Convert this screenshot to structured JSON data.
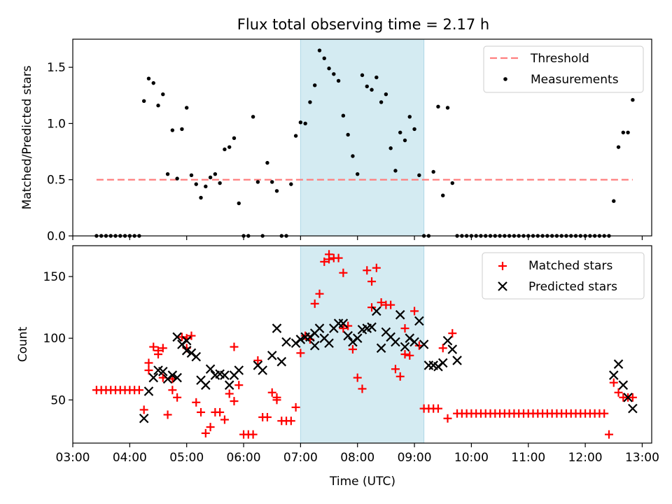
{
  "chart_data": [
    {
      "type": "scatter",
      "title": "Flux total observing time = 2.17 h",
      "xlabel": "",
      "ylabel": "Matched/Predicted stars",
      "xlim": [
        "03:00",
        "13:10"
      ],
      "ylim": [
        0,
        1.75
      ],
      "yticks": [
        "0.0",
        "0.5",
        "1.0",
        "1.5"
      ],
      "legend_position": "top-right",
      "highlight_span": {
        "from": "07:00",
        "to": "09:10"
      },
      "threshold": {
        "name": "Threshold",
        "value": 0.5,
        "from": "03:25",
        "to": "12:50",
        "color": "#ff7f7f"
      },
      "series": [
        {
          "name": "Measurements",
          "marker": "dot",
          "color": "#000000",
          "x": [
            "03:25",
            "03:30",
            "03:35",
            "03:40",
            "03:45",
            "03:50",
            "03:55",
            "04:00",
            "04:05",
            "04:10",
            "04:15",
            "04:20",
            "04:25",
            "04:30",
            "04:35",
            "04:40",
            "04:45",
            "04:50",
            "04:55",
            "05:00",
            "05:05",
            "05:10",
            "05:15",
            "05:20",
            "05:25",
            "05:30",
            "05:35",
            "05:40",
            "05:45",
            "05:50",
            "05:55",
            "06:00",
            "06:05",
            "06:10",
            "06:15",
            "06:20",
            "06:25",
            "06:30",
            "06:35",
            "06:40",
            "06:45",
            "06:50",
            "06:55",
            "07:00",
            "07:05",
            "07:10",
            "07:15",
            "07:20",
            "07:25",
            "07:30",
            "07:35",
            "07:40",
            "07:45",
            "07:50",
            "07:55",
            "08:00",
            "08:05",
            "08:10",
            "08:15",
            "08:20",
            "08:25",
            "08:30",
            "08:35",
            "08:40",
            "08:45",
            "08:50",
            "08:55",
            "09:00",
            "09:05",
            "09:10",
            "09:15",
            "09:20",
            "09:25",
            "09:30",
            "09:35",
            "09:40",
            "09:45",
            "09:50",
            "09:55",
            "10:00",
            "10:05",
            "10:10",
            "10:15",
            "10:20",
            "10:25",
            "10:30",
            "10:35",
            "10:40",
            "10:45",
            "10:50",
            "10:55",
            "11:00",
            "11:05",
            "11:10",
            "11:15",
            "11:20",
            "11:25",
            "11:30",
            "11:35",
            "11:40",
            "11:45",
            "11:50",
            "11:55",
            "12:00",
            "12:05",
            "12:10",
            "12:15",
            "12:20",
            "12:25",
            "12:30",
            "12:35",
            "12:40",
            "12:45",
            "12:50"
          ],
          "y": [
            0,
            0,
            0,
            0,
            0,
            0,
            0,
            0,
            0,
            0,
            1.2,
            1.4,
            1.36,
            1.16,
            1.26,
            0.55,
            0.94,
            0.51,
            0.95,
            1.14,
            0.54,
            0.46,
            0.34,
            0.44,
            0.52,
            0.55,
            0.47,
            0.77,
            0.79,
            0.87,
            0.29,
            0,
            0,
            1.06,
            0.48,
            0,
            0.65,
            0.48,
            0.4,
            0,
            0,
            0.46,
            0.89,
            1.01,
            1.0,
            1.19,
            1.34,
            1.65,
            1.58,
            1.49,
            1.44,
            1.38,
            1.07,
            0.9,
            0.71,
            0.55,
            1.43,
            1.33,
            1.3,
            1.41,
            1.19,
            1.26,
            0.78,
            0.58,
            0.92,
            0.85,
            1.06,
            0.95,
            0.54,
            0,
            0,
            0.57,
            1.15,
            0.36,
            1.14,
            0.47,
            0,
            0,
            0,
            0,
            0,
            0,
            0,
            0,
            0,
            0,
            0,
            0,
            0,
            0,
            0,
            0,
            0,
            0,
            0,
            0,
            0,
            0,
            0,
            0,
            0,
            0,
            0,
            0,
            0,
            0,
            0,
            0,
            0,
            0.31,
            0.79,
            0.92,
            0.92,
            1.21
          ]
        }
      ]
    },
    {
      "type": "scatter",
      "title": "",
      "xlabel": "Time (UTC)",
      "ylabel": "Count",
      "xlim": [
        "03:00",
        "13:10"
      ],
      "ylim": [
        15,
        175
      ],
      "xticks": [
        "03:00",
        "04:00",
        "05:00",
        "06:00",
        "07:00",
        "08:00",
        "09:00",
        "10:00",
        "11:00",
        "12:00",
        "13:00"
      ],
      "yticks": [
        "50",
        "100",
        "150"
      ],
      "legend_position": "top-right",
      "highlight_span": {
        "from": "07:00",
        "to": "09:10"
      },
      "series": [
        {
          "name": "Matched stars",
          "marker": "plus",
          "color": "#ff0000",
          "x": [
            "03:25",
            "03:30",
            "03:35",
            "03:40",
            "03:45",
            "03:50",
            "03:55",
            "04:00",
            "04:05",
            "04:10",
            "04:15",
            "04:20",
            "04:25",
            "04:30",
            "04:35",
            "04:40",
            "04:45",
            "04:50",
            "04:55",
            "05:00",
            "05:05",
            "05:10",
            "05:15",
            "05:20",
            "05:25",
            "05:30",
            "05:35",
            "05:40",
            "05:45",
            "05:50",
            "05:55",
            "06:00",
            "06:05",
            "06:10",
            "06:15",
            "06:20",
            "06:25",
            "06:30",
            "06:35",
            "06:40",
            "06:45",
            "06:50",
            "06:55",
            "07:00",
            "07:05",
            "07:10",
            "07:15",
            "07:20",
            "07:25",
            "07:30",
            "07:35",
            "07:40",
            "07:45",
            "07:50",
            "07:55",
            "08:00",
            "08:05",
            "08:10",
            "08:15",
            "08:20",
            "08:25",
            "08:30",
            "08:35",
            "08:40",
            "08:45",
            "08:50",
            "08:55",
            "09:00",
            "09:05",
            "09:10",
            "09:15",
            "09:20",
            "09:25",
            "09:30",
            "09:35",
            "09:40",
            "09:45",
            "09:50",
            "09:55",
            "10:00",
            "10:05",
            "10:10",
            "10:15",
            "10:20",
            "10:25",
            "10:30",
            "10:35",
            "10:40",
            "10:45",
            "10:50",
            "10:55",
            "11:00",
            "11:05",
            "11:10",
            "11:15",
            "11:20",
            "11:25",
            "11:30",
            "11:35",
            "11:40",
            "11:45",
            "11:50",
            "11:55",
            "12:00",
            "12:05",
            "12:10",
            "12:15",
            "12:20",
            "12:25",
            "12:30",
            "12:35",
            "12:40",
            "12:45",
            "12:50",
            "04:20",
            "04:30",
            "04:35",
            "04:45",
            "05:00",
            "05:50",
            "06:35",
            "07:30",
            "07:45",
            "08:15",
            "08:50"
          ],
          "y": [
            58,
            58,
            58,
            58,
            58,
            58,
            58,
            58,
            58,
            58,
            42,
            80,
            93,
            87,
            92,
            38,
            67,
            52,
            101,
            92,
            102,
            48,
            40,
            23,
            28,
            40,
            40,
            34,
            55,
            49,
            62,
            22,
            22,
            22,
            82,
            36,
            36,
            56,
            52,
            33,
            33,
            33,
            44,
            88,
            102,
            99,
            128,
            136,
            162,
            168,
            165,
            165,
            153,
            110,
            91,
            68,
            59,
            155,
            146,
            157,
            129,
            127,
            127,
            75,
            69,
            87,
            86,
            122,
            94,
            43,
            43,
            43,
            43,
            92,
            35,
            104,
            39,
            39,
            39,
            39,
            39,
            39,
            39,
            39,
            39,
            39,
            39,
            39,
            39,
            39,
            39,
            39,
            39,
            39,
            39,
            39,
            39,
            39,
            39,
            39,
            39,
            39,
            39,
            39,
            39,
            39,
            39,
            39,
            22,
            64,
            56,
            52,
            52,
            52,
            74,
            90,
            68,
            58,
            100,
            93,
            50,
            164,
            108,
            125,
            108
          ]
        },
        {
          "name": "Predicted stars",
          "marker": "x",
          "color": "#000000",
          "x": [
            "04:15",
            "04:20",
            "04:25",
            "04:30",
            "04:35",
            "04:40",
            "04:45",
            "04:50",
            "04:55",
            "05:00",
            "05:05",
            "05:10",
            "05:15",
            "05:20",
            "05:25",
            "05:30",
            "05:35",
            "05:40",
            "05:45",
            "05:50",
            "05:55",
            "06:15",
            "06:20",
            "06:30",
            "06:35",
            "06:40",
            "06:45",
            "06:55",
            "07:00",
            "07:05",
            "07:10",
            "07:15",
            "07:20",
            "07:25",
            "07:30",
            "07:35",
            "07:40",
            "07:45",
            "07:50",
            "07:55",
            "08:00",
            "08:05",
            "08:10",
            "08:15",
            "08:20",
            "08:25",
            "08:30",
            "08:35",
            "08:40",
            "08:45",
            "08:50",
            "08:55",
            "09:00",
            "09:05",
            "09:10",
            "09:15",
            "09:20",
            "09:25",
            "09:30",
            "09:35",
            "09:40",
            "09:45",
            "12:30",
            "12:35",
            "12:40",
            "12:45",
            "12:50",
            "04:50",
            "05:00",
            "07:15"
          ],
          "y": [
            35,
            57,
            68,
            74,
            73,
            67,
            70,
            101,
            95,
            90,
            88,
            85,
            66,
            62,
            75,
            70,
            71,
            70,
            62,
            70,
            74,
            78,
            74,
            86,
            108,
            81,
            97,
            96,
            99,
            101,
            101,
            104,
            108,
            100,
            96,
            108,
            112,
            112,
            102,
            97,
            100,
            107,
            108,
            109,
            122,
            92,
            105,
            101,
            97,
            119,
            93,
            100,
            97,
            114,
            95,
            78,
            78,
            77,
            80,
            98,
            91,
            82,
            70,
            79,
            62,
            52,
            43,
            68,
            98,
            94
          ]
        }
      ]
    }
  ]
}
